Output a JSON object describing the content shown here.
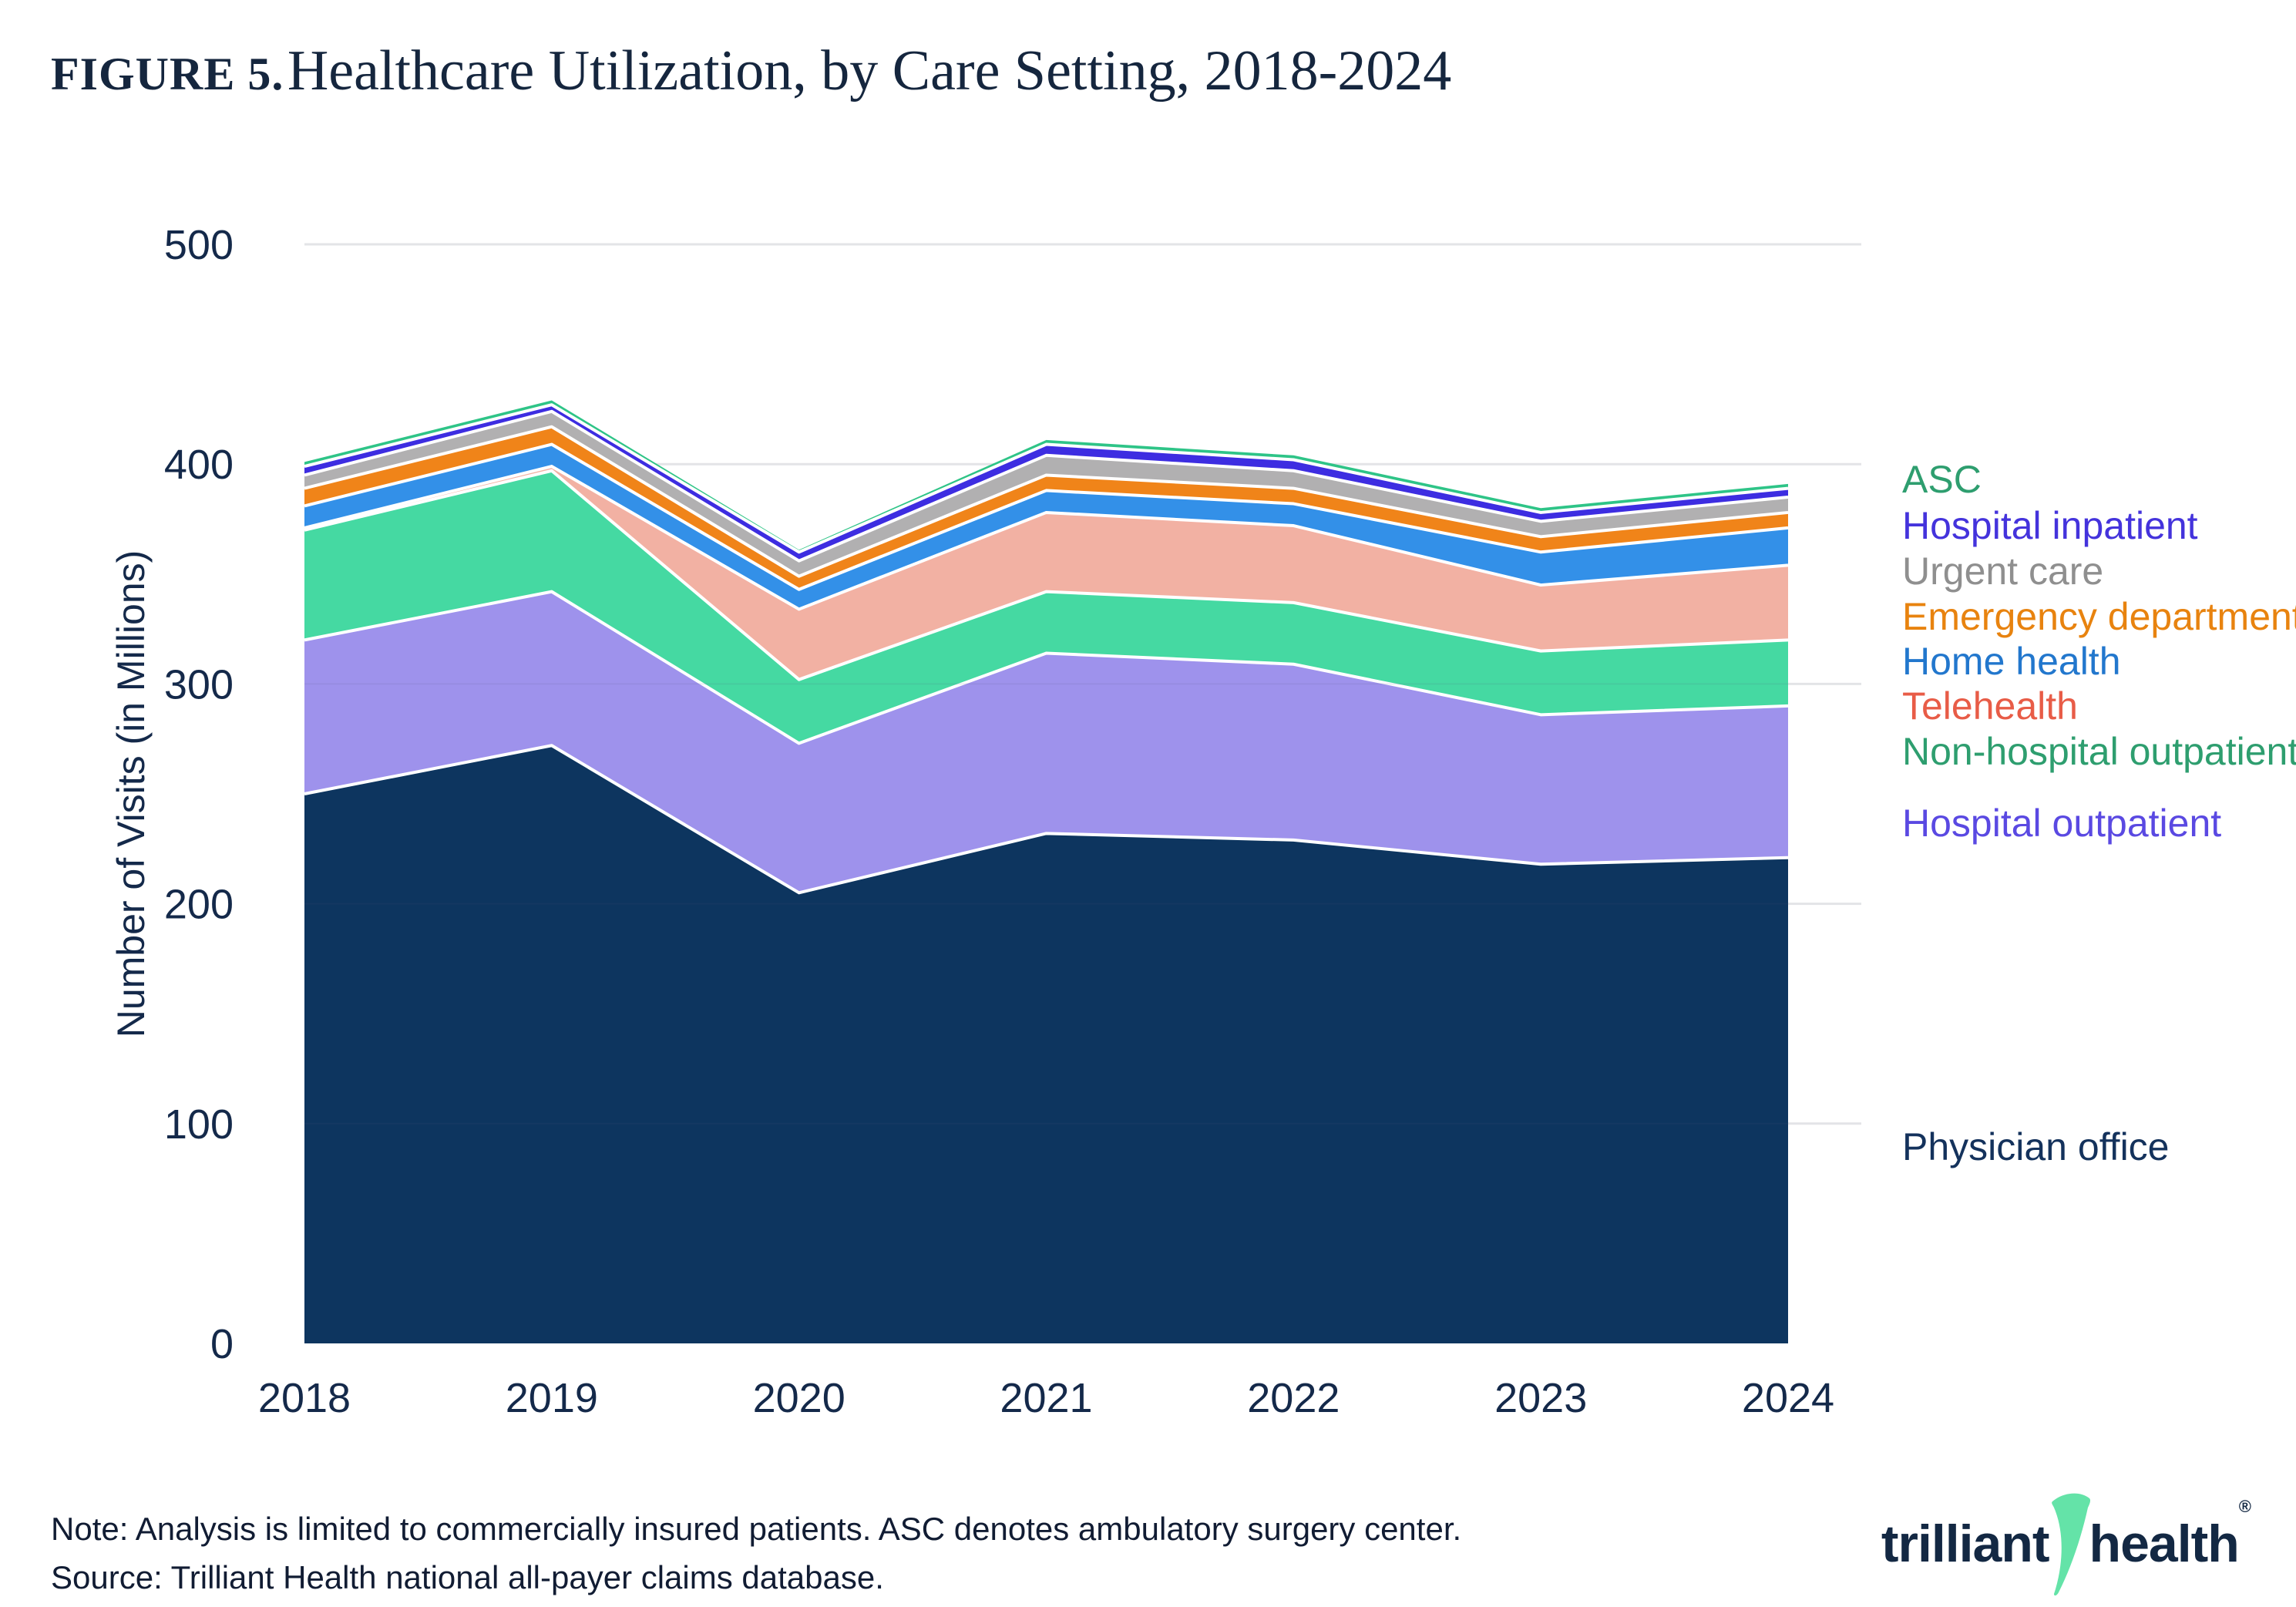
{
  "figure_label": "FIGURE 5.",
  "title": "Healthcare Utilization, by Care Setting, 2018-2024",
  "y_axis_title": "Number of Visits (in Millions)",
  "footer": {
    "note": "Note: Analysis is limited to commercially insured patients. ASC denotes ambulatory surgery center.",
    "source": "Source: Trilliant Health national all-payer claims database."
  },
  "logo": {
    "word1": "trilliant",
    "word2": "health",
    "registered": "®",
    "mark_color": "#64E3A8",
    "icon": "trilliant-swoosh-icon"
  },
  "legend": [
    {
      "label": "ASC",
      "color": "#2E9E6F",
      "series": "ASC"
    },
    {
      "label": "Hospital inpatient",
      "color": "#4433DC",
      "series": "Hospital inpatient"
    },
    {
      "label": "Urgent care",
      "color": "#8F8F8F",
      "series": "Urgent care"
    },
    {
      "label": "Emergency department",
      "color": "#E8830F",
      "series": "Emergency department"
    },
    {
      "label": "Home health",
      "color": "#2277CD",
      "series": "Home health"
    },
    {
      "label": "Telehealth",
      "color": "#E85C47",
      "series": "Telehealth"
    },
    {
      "label": "Non-hospital outpatient",
      "color": "#2E9E6F",
      "series": "Non-hospital outpatient"
    },
    {
      "label": "Hospital outpatient",
      "color": "#5A49E2",
      "series": "Hospital outpatient"
    },
    {
      "label": "Physician office",
      "color": "#14325C",
      "series": "Physician office"
    }
  ],
  "chart_data": {
    "type": "area",
    "stacked": true,
    "title": "Healthcare Utilization, by Care Setting, 2018-2024",
    "xlabel": "",
    "ylabel": "Number of Visits (in Millions)",
    "x": [
      2018,
      2019,
      2020,
      2021,
      2022,
      2023,
      2024
    ],
    "ylim": [
      0,
      500
    ],
    "yticks": [
      0,
      100,
      200,
      300,
      400,
      500
    ],
    "grid": true,
    "legend_position": "right",
    "series": [
      {
        "name": "Physician office",
        "color": "#0D355F",
        "values": [
          250,
          272,
          205,
          232,
          229,
          218,
          221
        ]
      },
      {
        "name": "Hospital outpatient",
        "color": "#9E92EC",
        "values": [
          70,
          70,
          68,
          82,
          80,
          68,
          69
        ]
      },
      {
        "name": "Non-hospital outpatient",
        "color": "#45D9A2",
        "values": [
          50,
          55,
          29,
          28,
          28,
          29,
          30
        ]
      },
      {
        "name": "Telehealth",
        "color": "#F2B1A3",
        "values": [
          1,
          2,
          32,
          36,
          35,
          30,
          34
        ]
      },
      {
        "name": "Home health",
        "color": "#3390E8",
        "values": [
          10,
          10,
          9,
          10,
          10,
          15,
          17
        ]
      },
      {
        "name": "Emergency department",
        "color": "#F08419",
        "values": [
          8,
          8,
          6,
          7,
          7,
          7,
          7
        ]
      },
      {
        "name": "Urgent care",
        "color": "#B1B0B1",
        "values": [
          6,
          7,
          7,
          9,
          8,
          7,
          7
        ]
      },
      {
        "name": "Hospital inpatient",
        "color": "#3D2DE1",
        "values": [
          4,
          3,
          4,
          5,
          5,
          4,
          4
        ]
      },
      {
        "name": "ASC",
        "color": "#2EC487",
        "values": [
          2,
          2,
          1,
          2,
          2,
          2,
          2
        ]
      }
    ]
  }
}
